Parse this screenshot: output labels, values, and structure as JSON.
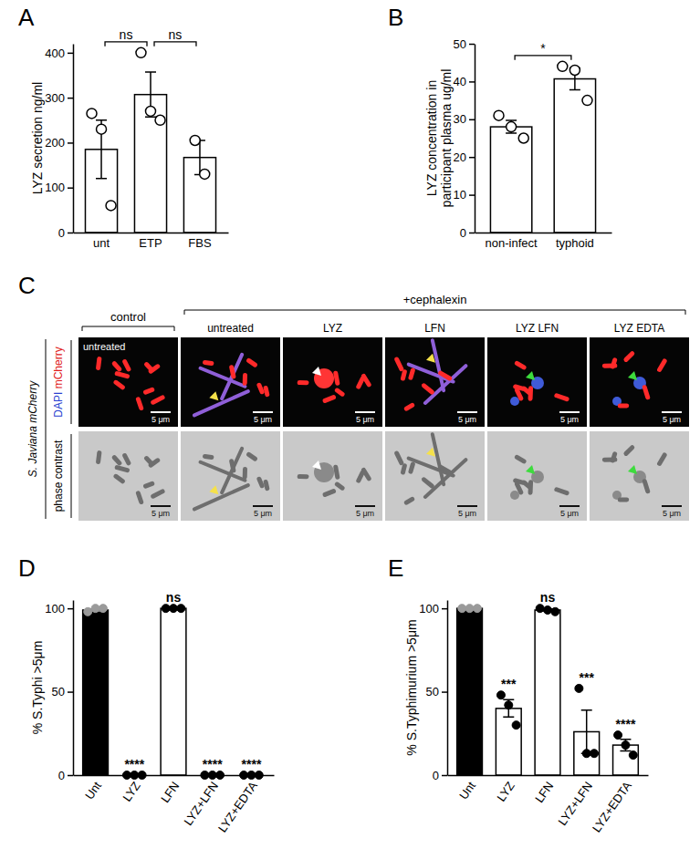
{
  "chart_data": [
    {
      "panel": "A",
      "type": "bar",
      "categories": [
        "unt",
        "ETP",
        "FBS"
      ],
      "values": [
        185,
        307,
        167
      ],
      "errors": [
        65,
        50,
        38
      ],
      "points": [
        [
          265,
          230,
          60
        ],
        [
          400,
          270,
          250
        ],
        [
          205,
          130
        ]
      ],
      "colors": [
        "#ffffff",
        "#ffffff",
        "#ffffff"
      ],
      "marker": "open",
      "ylabel": "LYZ secretion ng/ml",
      "ylim": [
        0,
        420
      ],
      "yticks": [
        0,
        100,
        200,
        300,
        400
      ],
      "comparisons": [
        {
          "between": [
            "unt",
            "ETP"
          ],
          "label": "ns"
        },
        {
          "between": [
            "ETP",
            "FBS"
          ],
          "label": "ns"
        }
      ]
    },
    {
      "panel": "B",
      "type": "bar",
      "categories": [
        "non-infect",
        "typhoid"
      ],
      "values": [
        28,
        40.7
      ],
      "errors": [
        1.7,
        2.9
      ],
      "points": [
        [
          31,
          28,
          25
        ],
        [
          44,
          43,
          35
        ]
      ],
      "colors": [
        "#ffffff",
        "#ffffff"
      ],
      "marker": "open",
      "ylabel": "LYZ concentration in participant plasma ug/ml",
      "ylim": [
        0,
        50
      ],
      "yticks": [
        0,
        10,
        20,
        30,
        40,
        50
      ],
      "comparisons": [
        {
          "between": [
            "non-infect",
            "typhoid"
          ],
          "label": "*"
        }
      ]
    },
    {
      "panel": "D",
      "type": "bar",
      "categories": [
        "Unt",
        "LYZ",
        "LFN",
        "LYZ+LFN",
        "LYZ+EDTA"
      ],
      "values": [
        99,
        0,
        100,
        0,
        0
      ],
      "errors": [
        0.7,
        0,
        0,
        0,
        0
      ],
      "points": [
        [
          98,
          100,
          100
        ],
        [
          0,
          0,
          0
        ],
        [
          100,
          100,
          100
        ],
        [
          0,
          0,
          0
        ],
        [
          0,
          0,
          0
        ]
      ],
      "colors": [
        "#000000",
        "#ffffff",
        "#ffffff",
        "#ffffff",
        "#ffffff"
      ],
      "marker": "filled",
      "ylabel": "% S.Typhi >5μm",
      "ylim": [
        0,
        105
      ],
      "yticks": [
        0,
        50,
        100
      ],
      "annotations": [
        null,
        "****",
        "ns",
        "****",
        "****"
      ]
    },
    {
      "panel": "E",
      "type": "bar",
      "categories": [
        "Unt",
        "LYZ",
        "LFN",
        "LYZ+LFN",
        "LYZ+EDTA"
      ],
      "values": [
        100,
        40,
        99,
        26,
        18
      ],
      "errors": [
        0,
        5.2,
        0.6,
        13,
        3.5
      ],
      "points": [
        [
          100,
          100,
          100
        ],
        [
          48,
          42,
          30
        ],
        [
          100,
          99,
          98
        ],
        [
          52,
          13,
          13
        ],
        [
          24,
          18,
          12
        ]
      ],
      "colors": [
        "#000000",
        "#ffffff",
        "#ffffff",
        "#ffffff",
        "#ffffff"
      ],
      "marker": "filled",
      "ylabel": "% S.Typhimurium >5μm",
      "ylim": [
        0,
        105
      ],
      "yticks": [
        0,
        50,
        100
      ],
      "annotations": [
        null,
        "***",
        "ns",
        "***",
        "****"
      ]
    }
  ],
  "image_panel": {
    "panel": "C",
    "groups": [
      {
        "label": "control",
        "columns": [
          "untreated"
        ]
      },
      {
        "label": "+cephalexin",
        "columns": [
          "untreated",
          "LYZ",
          "LFN",
          "LYZ LFN",
          "LYZ EDTA"
        ]
      }
    ],
    "strain": "S. Javiana mCherry",
    "channels": [
      "DAPI",
      "mCherry"
    ],
    "brightfield": "phase contrast",
    "scale_bar": "5 μm"
  }
}
